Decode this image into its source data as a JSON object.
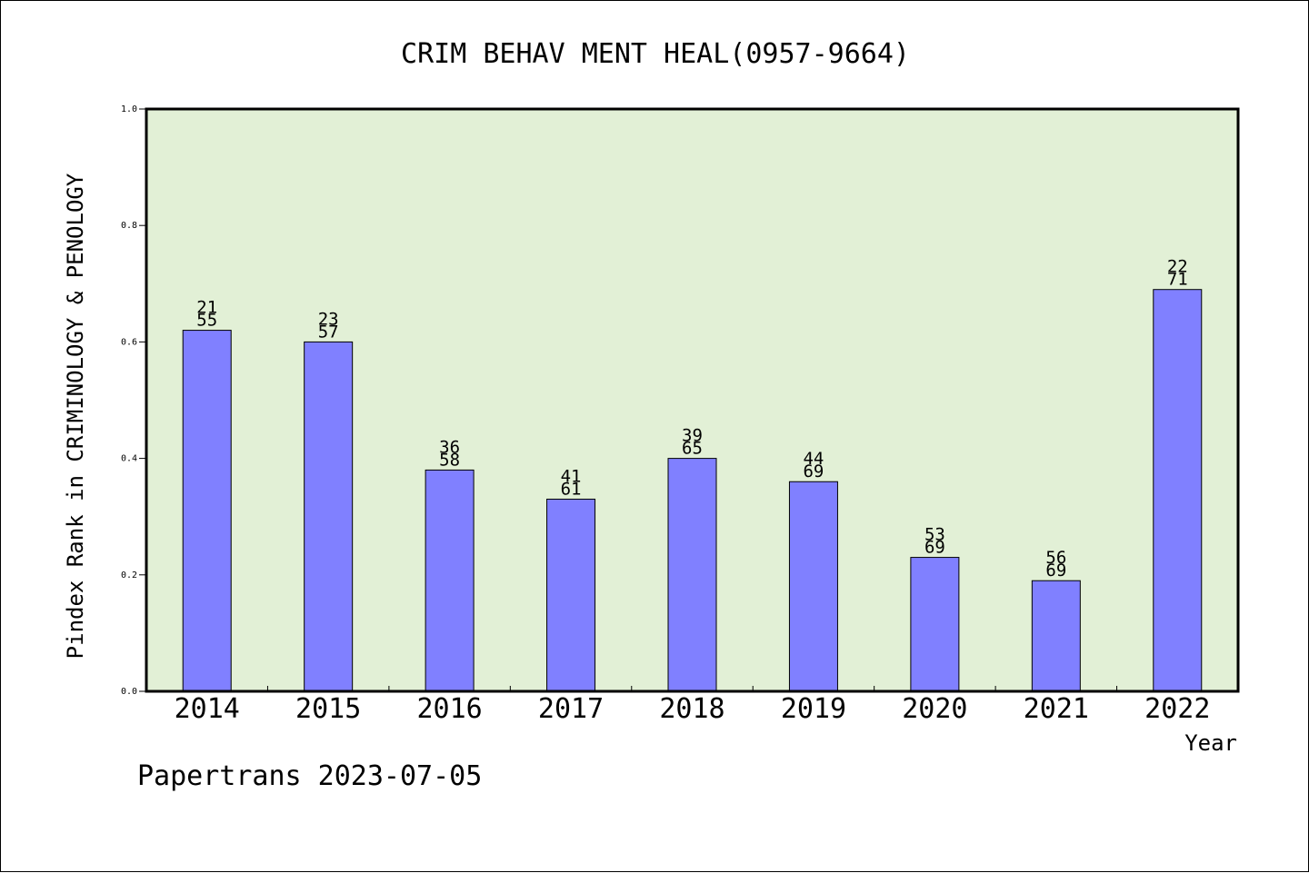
{
  "chart_data": {
    "type": "bar",
    "title": "CRIM BEHAV MENT HEAL(0957-9664)",
    "xlabel": "Year",
    "ylabel": "Pindex Rank in CRIMINOLOGY & PENOLOGY",
    "footer": "Papertrans 2023-07-05",
    "categories": [
      "2014",
      "2015",
      "2016",
      "2017",
      "2018",
      "2019",
      "2020",
      "2021",
      "2022"
    ],
    "values": [
      0.62,
      0.6,
      0.38,
      0.33,
      0.4,
      0.36,
      0.23,
      0.19,
      0.69
    ],
    "rank": [
      "21",
      "23",
      "36",
      "41",
      "39",
      "44",
      "53",
      "56",
      "22"
    ],
    "total": [
      "55",
      "57",
      "58",
      "61",
      "65",
      "69",
      "69",
      "69",
      "71"
    ],
    "ylim": [
      0,
      1
    ],
    "yticks": [
      "0.0",
      "0.2",
      "0.4",
      "0.6",
      "0.8",
      "1.0"
    ],
    "grid": false,
    "colors": {
      "plot_background": "#e2f0d6",
      "bar_fill": "#8080ff",
      "bar_stroke": "#000000"
    }
  }
}
